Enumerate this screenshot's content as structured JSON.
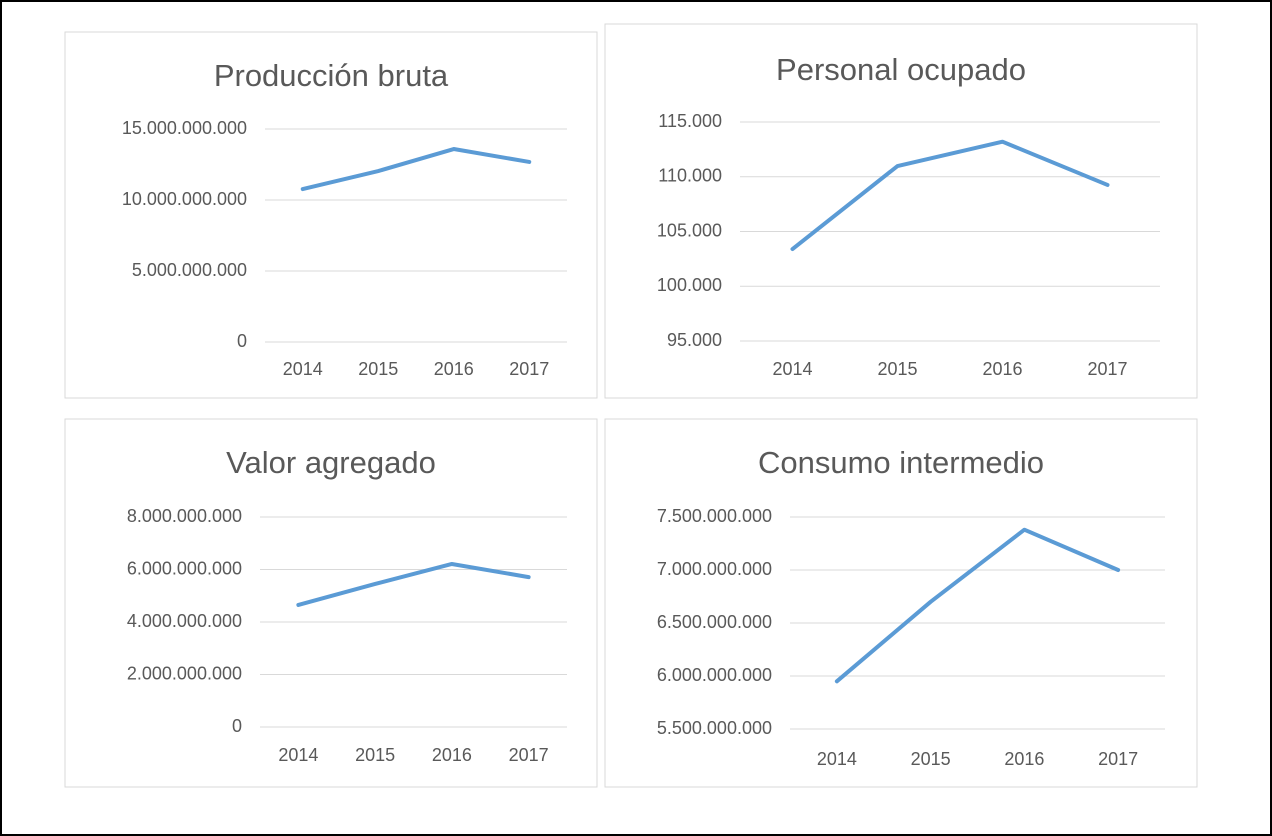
{
  "chart_data": [
    {
      "type": "line",
      "title": "Producción bruta",
      "categories": [
        "2014",
        "2015",
        "2016",
        "2017"
      ],
      "series": [
        {
          "name": "Producción bruta",
          "color": "#5b9bd5",
          "values": [
            10770000000,
            12040000000,
            13590000000,
            12680000000
          ]
        }
      ],
      "ylim": [
        0,
        15000000000
      ],
      "yticks": [
        0,
        {
          "value": 5000000000,
          "label": "5.000.000.000"
        },
        {
          "value": 10000000000,
          "label": "10.000.000.000"
        },
        {
          "value": 15000000000,
          "label": "15.000.000.000"
        }
      ],
      "grid": true
    },
    {
      "type": "line",
      "title": "Personal ocupado",
      "categories": [
        "2014",
        "2015",
        "2016",
        "2017"
      ],
      "series": [
        {
          "name": "Personal ocupado",
          "color": "#5b9bd5",
          "values": [
            103400,
            110980,
            113200,
            109250
          ]
        }
      ],
      "ylim": [
        95000,
        115000
      ],
      "yticks": [
        {
          "value": 95000,
          "label": "95.000"
        },
        {
          "value": 100000,
          "label": "100.000"
        },
        {
          "value": 105000,
          "label": "105.000"
        },
        {
          "value": 110000,
          "label": "110.000"
        },
        {
          "value": 115000,
          "label": "115.000"
        }
      ],
      "grid": true
    },
    {
      "type": "line",
      "title": "Valor agregado",
      "categories": [
        "2014",
        "2015",
        "2016",
        "2017"
      ],
      "series": [
        {
          "name": "Valor agregado",
          "color": "#5b9bd5",
          "values": [
            4650000000,
            5450000000,
            6210000000,
            5710000000
          ]
        }
      ],
      "ylim": [
        0,
        8000000000
      ],
      "yticks": [
        0,
        {
          "value": 2000000000,
          "label": "2.000.000.000"
        },
        {
          "value": 4000000000,
          "label": "4.000.000.000"
        },
        {
          "value": 6000000000,
          "label": "6.000.000.000"
        },
        {
          "value": 8000000000,
          "label": "8.000.000.000"
        }
      ],
      "grid": true
    },
    {
      "type": "line",
      "title": "Consumo intermedio",
      "categories": [
        "2014",
        "2015",
        "2016",
        "2017"
      ],
      "series": [
        {
          "name": "Consumo intermedio",
          "color": "#5b9bd5",
          "values": [
            5950000000,
            6700000000,
            7380000000,
            7000000000
          ]
        }
      ],
      "ylim": [
        5500000000,
        7500000000
      ],
      "yticks": [
        {
          "value": 5500000000,
          "label": "5.500.000.000"
        },
        {
          "value": 6000000000,
          "label": "6.000.000.000"
        },
        {
          "value": 6500000000,
          "label": "6.500.000.000"
        },
        {
          "value": 7000000000,
          "label": "7.000.000.000"
        },
        {
          "value": 7500000000,
          "label": "7.500.000.000"
        }
      ],
      "grid": true
    }
  ]
}
